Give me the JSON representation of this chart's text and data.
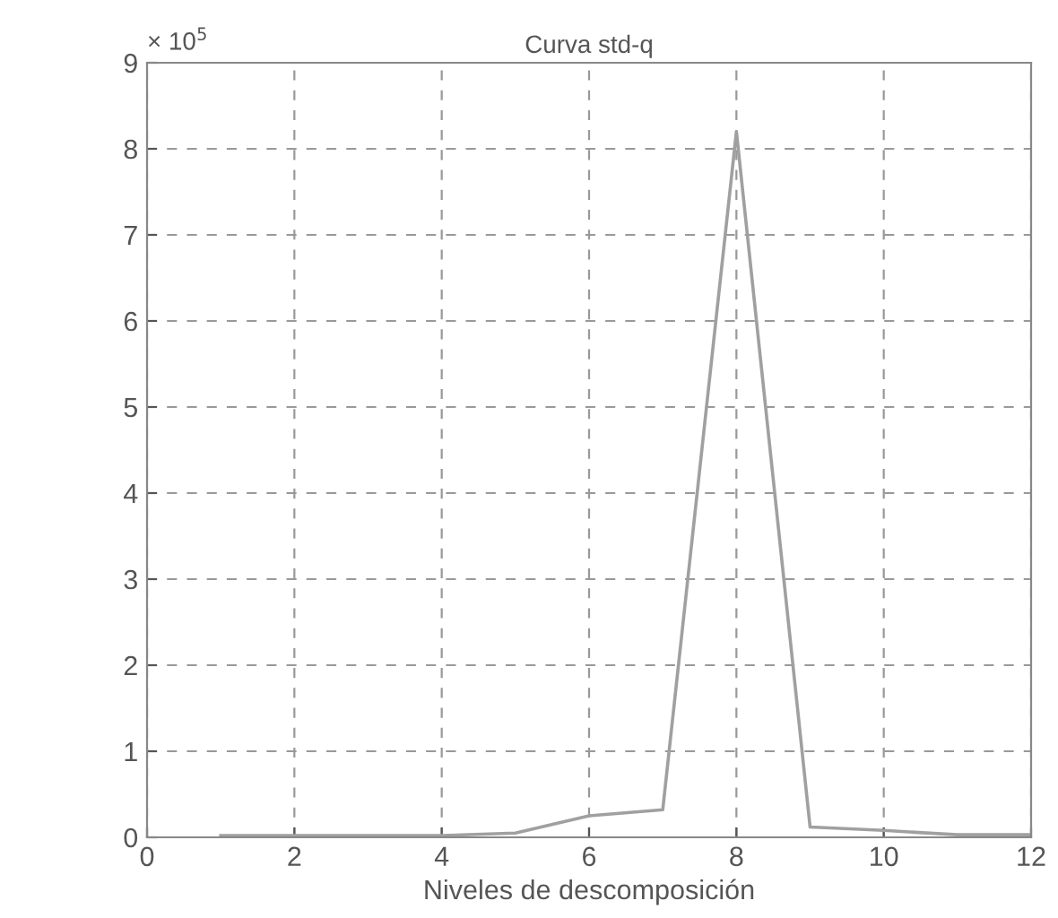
{
  "chart_data": {
    "type": "line",
    "title": "Curva std-q",
    "xlabel": "Niveles de descomposición",
    "x": [
      1,
      2,
      3,
      4,
      5,
      6,
      7,
      8,
      9,
      10,
      11,
      12
    ],
    "series": [
      {
        "color": "#a0a0a0",
        "values": [
          0.02,
          0.02,
          0.02,
          0.02,
          0.05,
          0.25,
          0.32,
          8.2,
          0.12,
          0.08,
          0.03,
          0.03
        ]
      }
    ],
    "xlim": [
      0,
      12
    ],
    "xticks": [
      0,
      2,
      4,
      6,
      8,
      10,
      12
    ],
    "ylim": [
      0,
      9
    ],
    "yticks": [
      0,
      1,
      2,
      3,
      4,
      5,
      6,
      7,
      8,
      9
    ],
    "annotations": [
      "× 10$^{5}$"
    ],
    "grid": true,
    "marker": "none",
    "line_style": "solid",
    "legend": false
  }
}
